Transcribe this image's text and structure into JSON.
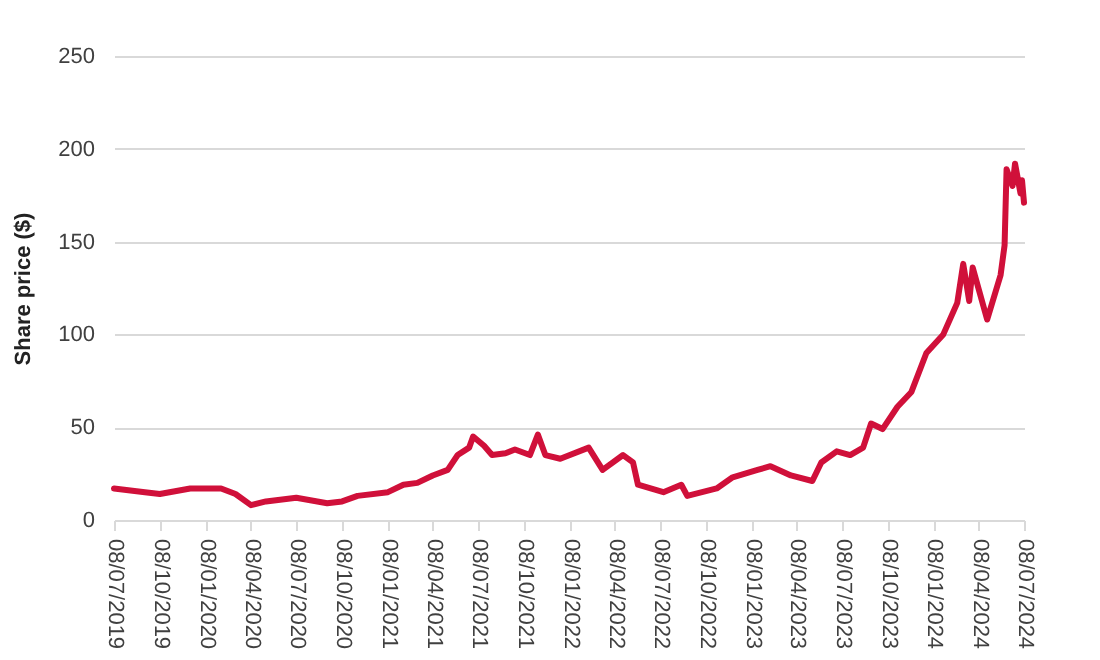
{
  "chart_data": {
    "type": "line",
    "ylabel": "Share price ($)",
    "x": [
      "2019-07-08",
      "2019-09-08",
      "2019-10-08",
      "2019-12-08",
      "2020-02-08",
      "2020-03-08",
      "2020-04-08",
      "2020-05-08",
      "2020-07-08",
      "2020-09-08",
      "2020-10-08",
      "2020-11-08",
      "2021-01-08",
      "2021-02-08",
      "2021-03-08",
      "2021-04-08",
      "2021-05-08",
      "2021-05-28",
      "2021-06-20",
      "2021-06-28",
      "2021-07-20",
      "2021-08-05",
      "2021-09-01",
      "2021-09-20",
      "2021-10-20",
      "2021-11-05",
      "2021-11-20",
      "2021-12-20",
      "2022-02-15",
      "2022-03-15",
      "2022-04-25",
      "2022-05-15",
      "2022-05-25",
      "2022-07-15",
      "2022-08-20",
      "2022-09-01",
      "2022-10-30",
      "2022-12-01",
      "2023-01-20",
      "2023-02-15",
      "2023-03-28",
      "2023-05-10",
      "2023-05-28",
      "2023-06-28",
      "2023-07-25",
      "2023-08-20",
      "2023-09-05",
      "2023-09-28",
      "2023-10-28",
      "2023-11-25",
      "2023-12-25",
      "2024-01-28",
      "2024-02-25",
      "2024-03-08",
      "2024-03-20",
      "2024-03-27",
      "2024-04-25",
      "2024-05-22",
      "2024-05-30",
      "2024-06-03",
      "2024-06-15",
      "2024-06-20",
      "2024-07-01",
      "2024-07-04",
      "2024-07-08"
    ],
    "series": [
      {
        "color": "#d0103a",
        "values": [
          17,
          15,
          14,
          17,
          17,
          14,
          8,
          10,
          12,
          9,
          10,
          13,
          15,
          19,
          20,
          24,
          27,
          35,
          39,
          45,
          40,
          35,
          36,
          38,
          35,
          46,
          35,
          33,
          39,
          27,
          35,
          31,
          19,
          15,
          19,
          13,
          17,
          23,
          27,
          29,
          24,
          21,
          31,
          37,
          35,
          39,
          52,
          49,
          61,
          69,
          90,
          100,
          117,
          138,
          118,
          136,
          108,
          132,
          148,
          189,
          180,
          192,
          176,
          183,
          171
        ]
      }
    ],
    "xlim": [
      "2019-07-08",
      "2024-07-08"
    ],
    "xticks": [
      {
        "value": "2019-07-08",
        "label": "08/07/2019"
      },
      {
        "value": "2019-10-08",
        "label": "08/10/2019"
      },
      {
        "value": "2020-01-08",
        "label": "08/01/2020"
      },
      {
        "value": "2020-04-08",
        "label": "08/04/2020"
      },
      {
        "value": "2020-07-08",
        "label": "08/07/2020"
      },
      {
        "value": "2020-10-08",
        "label": "08/10/2020"
      },
      {
        "value": "2021-01-08",
        "label": "08/01/2021"
      },
      {
        "value": "2021-04-08",
        "label": "08/04/2021"
      },
      {
        "value": "2021-07-08",
        "label": "08/07/2021"
      },
      {
        "value": "2021-10-08",
        "label": "08/10/2021"
      },
      {
        "value": "2022-01-08",
        "label": "08/01/2022"
      },
      {
        "value": "2022-04-08",
        "label": "08/04/2022"
      },
      {
        "value": "2022-07-08",
        "label": "08/07/2022"
      },
      {
        "value": "2022-10-08",
        "label": "08/10/2022"
      },
      {
        "value": "2023-01-08",
        "label": "08/01/2023"
      },
      {
        "value": "2023-04-08",
        "label": "08/04/2023"
      },
      {
        "value": "2023-07-08",
        "label": "08/07/2023"
      },
      {
        "value": "2023-10-08",
        "label": "08/10/2023"
      },
      {
        "value": "2024-01-08",
        "label": "08/01/2024"
      },
      {
        "value": "2024-04-08",
        "label": "08/04/2024"
      },
      {
        "value": "2024-07-08",
        "label": "08/07/2024"
      }
    ],
    "ylim": [
      0,
      250
    ],
    "yticks": [
      0,
      50,
      100,
      150,
      200,
      250
    ],
    "grid": "y",
    "marker": "none",
    "line_style": "solid"
  }
}
